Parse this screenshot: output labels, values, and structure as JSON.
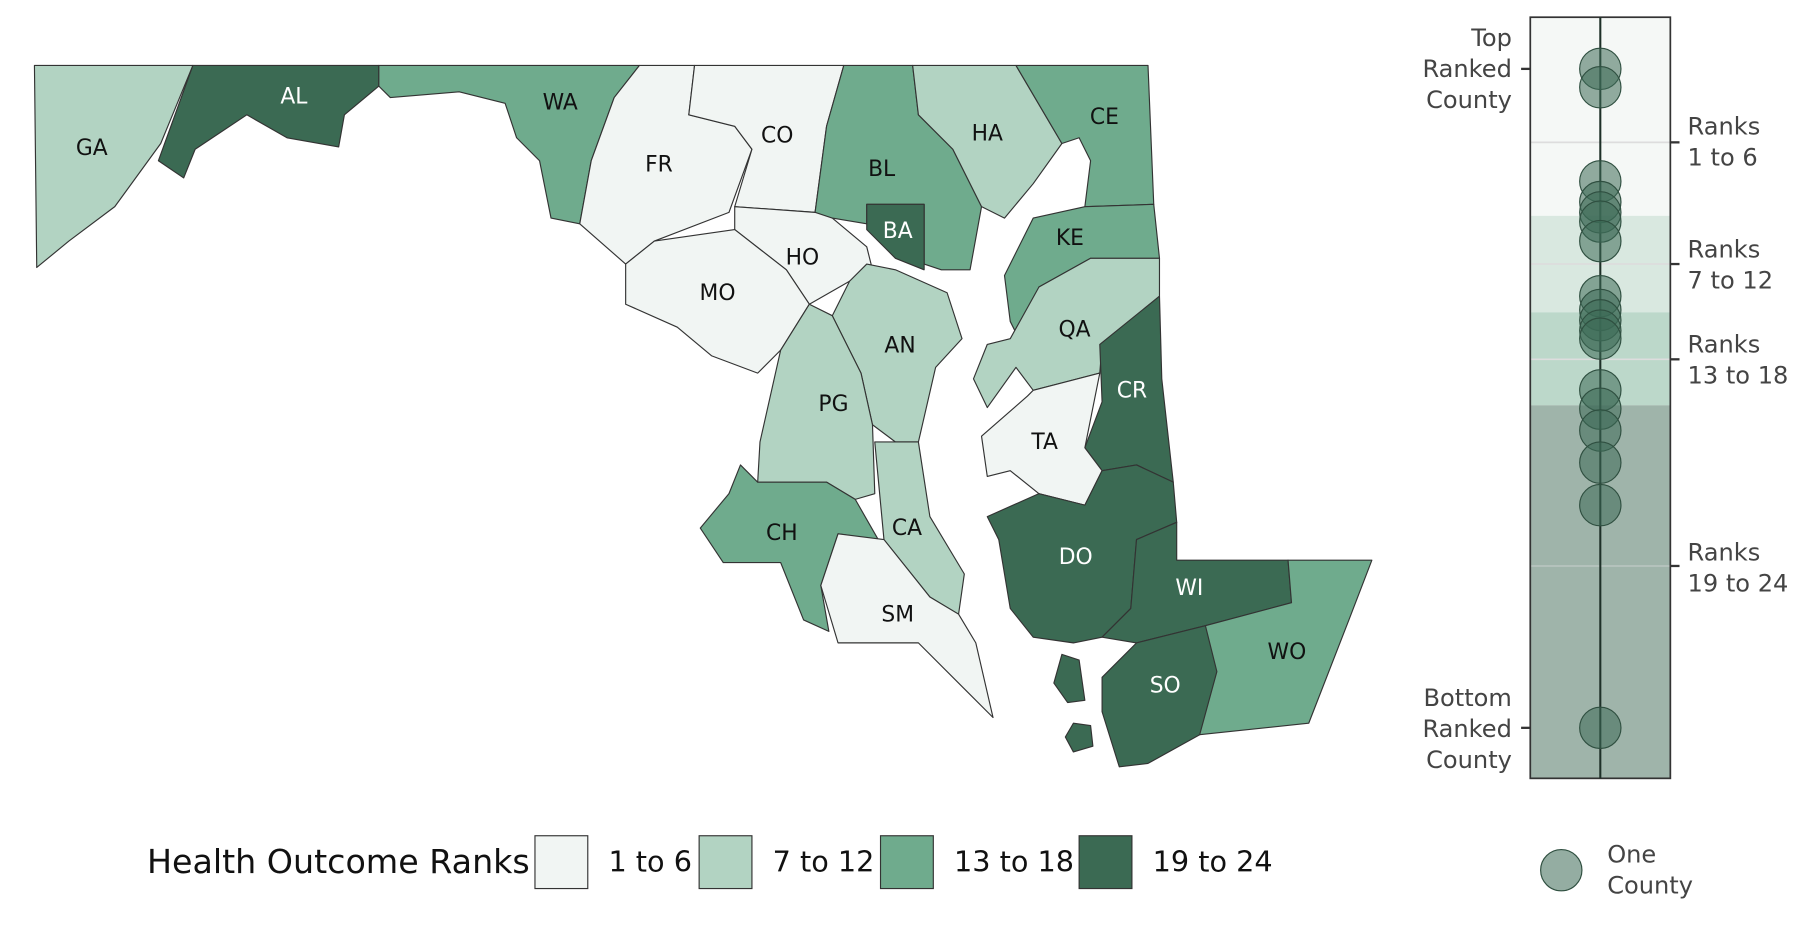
{
  "legend": {
    "title": "Health Outcome Ranks",
    "items": [
      {
        "label": "1 to 6",
        "color": "#f1f5f3"
      },
      {
        "label": "7 to 12",
        "color": "#b2d3c2"
      },
      {
        "label": "13 to 18",
        "color": "#6fab8d"
      },
      {
        "label": "19 to 24",
        "color": "#3b6a53"
      }
    ]
  },
  "counties": [
    {
      "label": "GA",
      "ranks": "7 to 12"
    },
    {
      "label": "AL",
      "ranks": "19 to 24"
    },
    {
      "label": "WA",
      "ranks": "13 to 18"
    },
    {
      "label": "FR",
      "ranks": "1 to 6"
    },
    {
      "label": "CO",
      "ranks": "1 to 6"
    },
    {
      "label": "BL",
      "ranks": "13 to 18"
    },
    {
      "label": "BA",
      "ranks": "19 to 24"
    },
    {
      "label": "HA",
      "ranks": "7 to 12"
    },
    {
      "label": "CE",
      "ranks": "13 to 18"
    },
    {
      "label": "KE",
      "ranks": "13 to 18"
    },
    {
      "label": "QA",
      "ranks": "7 to 12"
    },
    {
      "label": "CR",
      "ranks": "19 to 24"
    },
    {
      "label": "TA",
      "ranks": "1 to 6"
    },
    {
      "label": "DO",
      "ranks": "19 to 24"
    },
    {
      "label": "WI",
      "ranks": "19 to 24"
    },
    {
      "label": "WO",
      "ranks": "13 to 18"
    },
    {
      "label": "SO",
      "ranks": "19 to 24"
    },
    {
      "label": "HO",
      "ranks": "1 to 6"
    },
    {
      "label": "MO",
      "ranks": "1 to 6"
    },
    {
      "label": "AN",
      "ranks": "7 to 12"
    },
    {
      "label": "PG",
      "ranks": "7 to 12"
    },
    {
      "label": "CH",
      "ranks": "13 to 18"
    },
    {
      "label": "CA",
      "ranks": "7 to 12"
    },
    {
      "label": "SM",
      "ranks": "1 to 6"
    }
  ],
  "strip": {
    "top_label": [
      "Top",
      "Ranked",
      "County"
    ],
    "bottom_label": [
      "Bottom",
      "Ranked",
      "County"
    ],
    "band_labels": [
      [
        "Ranks",
        "1 to 6"
      ],
      [
        "Ranks",
        "7 to 12"
      ],
      [
        "Ranks",
        "13 to 18"
      ],
      [
        "Ranks",
        "19 to 24"
      ]
    ],
    "dot_legend": [
      "One",
      "County"
    ]
  }
}
